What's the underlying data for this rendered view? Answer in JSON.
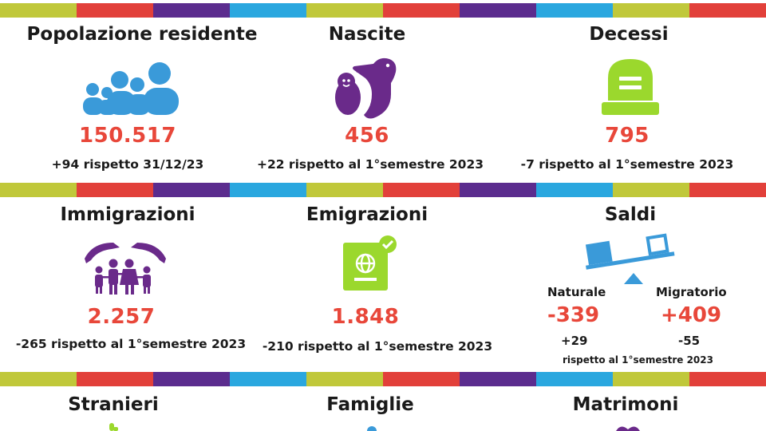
{
  "colors": {
    "accent_red": "#e8473a",
    "blue": "#3a9ad9",
    "purple": "#6a2a8a",
    "lime": "#9bd82d",
    "olive": "#c0c83a",
    "stripe_sequence": [
      "#c0c83a",
      "#e2403a",
      "#5b2c8e",
      "#2aa7df",
      "#c0c83a",
      "#e2403a",
      "#5b2c8e",
      "#2aa7df",
      "#c0c83a",
      "#e2403a"
    ]
  },
  "row1": {
    "popolazione": {
      "title": "Popolazione  residente",
      "icon": "people-group-icon",
      "value": "150.517",
      "note": "+94 rispetto 31/12/23"
    },
    "nascite": {
      "title": "Nascite",
      "icon": "stork-baby-icon",
      "value": "456",
      "note": "+22 rispetto al 1°semestre 2023"
    },
    "decessi": {
      "title": "Decessi",
      "icon": "tombstone-icon",
      "value": "795",
      "note": "-7 rispetto al 1°semestre 2023"
    }
  },
  "row2": {
    "immigrazioni": {
      "title": "Immigrazioni",
      "icon": "family-hands-icon",
      "value": "2.257",
      "note": "-265 rispetto al 1°semestre 2023"
    },
    "emigrazioni": {
      "title": "Emigrazioni",
      "icon": "passport-icon",
      "value": "1.848",
      "note": "-210 rispetto al 1°semestre 2023"
    },
    "saldi": {
      "title": "Saldi",
      "icon": "balance-scale-icon",
      "naturale": {
        "label": "Naturale",
        "value": "-339",
        "delta": "+29"
      },
      "migratorio": {
        "label": "Migratorio",
        "value": "+409",
        "delta": "-55"
      },
      "note": "rispetto al 1°semestre 2023"
    }
  },
  "row3": {
    "stranieri": {
      "title": "Stranieri"
    },
    "famiglie": {
      "title": "Famiglie"
    },
    "matrimoni": {
      "title": "Matrimoni"
    }
  }
}
